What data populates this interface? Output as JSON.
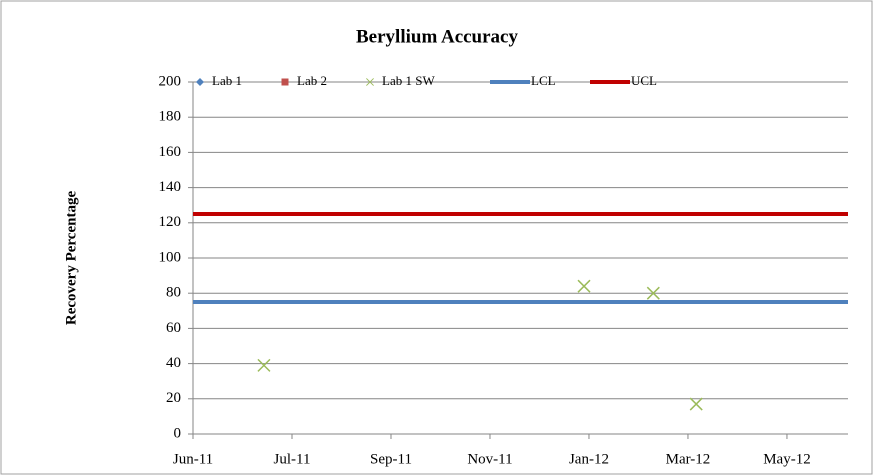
{
  "chart_data": {
    "type": "scatter",
    "title": "Beryllium Accuracy",
    "y_label": "Recovery Percentage",
    "xlim": [
      40695,
      41092
    ],
    "xticks": [
      {
        "value": 40695,
        "label": "Jun-11"
      },
      {
        "value": 40755,
        "label": "Jul-11"
      },
      {
        "value": 40815,
        "label": "Sep-11"
      },
      {
        "value": 40875,
        "label": "Nov-11"
      },
      {
        "value": 40935,
        "label": "Jan-12"
      },
      {
        "value": 40995,
        "label": "Mar-12"
      },
      {
        "value": 41055,
        "label": "May-12"
      }
    ],
    "ylim": [
      0,
      200
    ],
    "yticks": [
      0,
      20,
      40,
      60,
      80,
      100,
      120,
      140,
      160,
      180,
      200
    ],
    "grid": true,
    "legend": "top",
    "series": [
      {
        "name": "Lab 1",
        "color": "#4f81bd",
        "marker": "diamond",
        "x": [],
        "values": []
      },
      {
        "name": "Lab 2",
        "color": "#c0504d",
        "marker": "square",
        "x": [],
        "values": []
      },
      {
        "name": "Lab 1 SW",
        "color": "#9bbb59",
        "marker": "x",
        "x": [
          40738,
          40932,
          40974,
          41000
        ],
        "values": [
          39,
          84,
          80,
          17
        ]
      },
      {
        "name": "LCL",
        "color": "#4f81bd",
        "marker": "line",
        "x": [
          40695,
          41092
        ],
        "values": [
          75,
          75
        ]
      },
      {
        "name": "UCL",
        "color": "#c00000",
        "marker": "line",
        "x": [
          40695,
          41092
        ],
        "values": [
          125,
          125
        ]
      }
    ]
  }
}
